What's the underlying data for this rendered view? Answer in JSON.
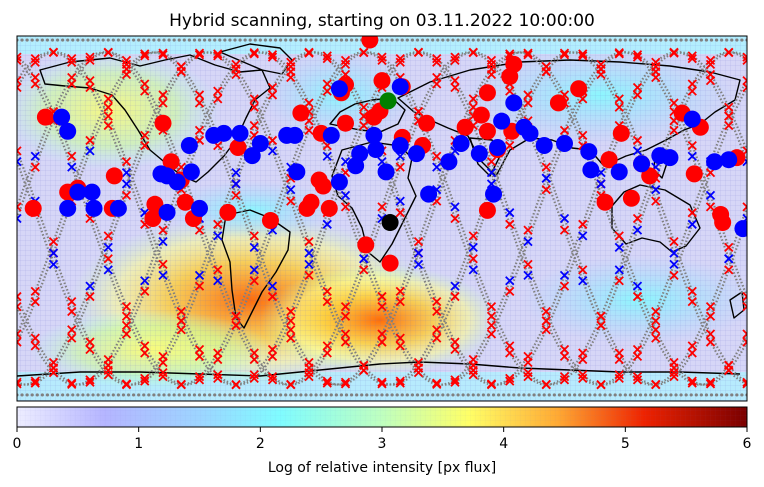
{
  "chart_data": {
    "type": "scatter",
    "title": "Hybrid scanning, starting on 03.11.2022 10:00:00",
    "background": "world map (equirectangular) shaded by log of relative intensity, with coastlines and a fine grid",
    "colorbar": {
      "label": "Log of relative intensity [px flux]",
      "ticks": [
        "0",
        "1",
        "2",
        "3",
        "4",
        "5",
        "6"
      ],
      "range": [
        0,
        6
      ],
      "colormap": "jet (light)"
    },
    "xlim": [
      -180,
      180
    ],
    "ylim": [
      -90,
      90
    ],
    "grid": true,
    "colors": {
      "track": "#808080",
      "red": "#ff0000",
      "blue": "#0000ff",
      "green": "#008000",
      "black": "#000000",
      "coastline": "#000000"
    },
    "markers": {
      "red_circles": [
        [
          -166,
          50
        ],
        [
          -172,
          5
        ],
        [
          -155,
          13
        ],
        [
          -150,
          15
        ],
        [
          -133,
          5
        ],
        [
          -132,
          21
        ],
        [
          -113,
          0
        ],
        [
          -112,
          7
        ],
        [
          -108,
          47
        ],
        [
          -104,
          28
        ],
        [
          -99,
          19
        ],
        [
          -97,
          8
        ],
        [
          -93,
          0
        ],
        [
          -76,
          3
        ],
        [
          -71,
          35
        ],
        [
          -55,
          -1
        ],
        [
          -31,
          19
        ],
        [
          -29,
          16
        ],
        [
          -35,
          8
        ],
        [
          -37,
          5
        ],
        [
          -26,
          5
        ],
        [
          -20,
          62
        ],
        [
          -18,
          47
        ],
        [
          -18,
          66
        ],
        [
          10,
          40
        ],
        [
          0,
          68
        ],
        [
          10,
          65
        ],
        [
          22,
          47
        ],
        [
          52,
          43
        ],
        [
          57,
          34
        ],
        [
          52,
          4
        ],
        [
          64,
          43
        ],
        [
          87,
          57
        ],
        [
          65,
          76
        ],
        [
          -6,
          88
        ],
        [
          -4,
          50
        ],
        [
          -40,
          52
        ],
        [
          110,
          8
        ],
        [
          112,
          29
        ],
        [
          128,
          27
        ],
        [
          154,
          22
        ],
        [
          167,
          2
        ],
        [
          157,
          45
        ],
        [
          148,
          52
        ],
        [
          175,
          30
        ],
        [
          168,
          -2
        ],
        [
          132,
          21
        ],
        [
          123,
          10
        ],
        [
          118,
          42
        ],
        [
          112,
          29
        ],
        [
          -8,
          -13
        ],
        [
          97,
          64
        ],
        [
          63,
          70
        ],
        [
          52,
          62
        ],
        [
          49,
          51
        ],
        [
          41,
          45
        ],
        [
          20,
          36
        ],
        [
          -1,
          53
        ],
        [
          4,
          -22
        ],
        [
          -30,
          42
        ]
      ],
      "blue_circles": [
        [
          -158,
          50
        ],
        [
          -155,
          43
        ],
        [
          -155,
          5
        ],
        [
          -150,
          13
        ],
        [
          -143,
          13
        ],
        [
          -142,
          5
        ],
        [
          -130,
          5
        ],
        [
          -109,
          22
        ],
        [
          -106,
          3
        ],
        [
          -106,
          21
        ],
        [
          -101,
          18
        ],
        [
          -95,
          36
        ],
        [
          -94,
          23
        ],
        [
          -90,
          5
        ],
        [
          -83,
          41
        ],
        [
          -78,
          42
        ],
        [
          -70,
          42
        ],
        [
          -64,
          31
        ],
        [
          -60,
          37
        ],
        [
          -47,
          41
        ],
        [
          -43,
          41
        ],
        [
          -42,
          23
        ],
        [
          -25,
          41
        ],
        [
          -21,
          18
        ],
        [
          -21,
          64
        ],
        [
          -13,
          26
        ],
        [
          -11,
          32
        ],
        [
          -4,
          41
        ],
        [
          -3,
          34
        ],
        [
          2,
          23
        ],
        [
          9,
          36
        ],
        [
          9,
          65
        ],
        [
          17,
          32
        ],
        [
          23,
          12
        ],
        [
          33,
          28
        ],
        [
          39,
          37
        ],
        [
          48,
          32
        ],
        [
          55,
          12
        ],
        [
          57,
          35
        ],
        [
          65,
          57
        ],
        [
          59,
          48
        ],
        [
          70,
          45
        ],
        [
          73,
          42
        ],
        [
          80,
          36
        ],
        [
          90,
          37
        ],
        [
          102,
          33
        ],
        [
          103,
          24
        ],
        [
          117,
          23
        ],
        [
          128,
          27
        ],
        [
          137,
          31
        ],
        [
          142,
          30
        ],
        [
          153,
          49
        ],
        [
          164,
          28
        ],
        [
          171,
          29
        ],
        [
          178,
          -5
        ]
      ],
      "green_circles": [
        [
          3,
          58
        ]
      ],
      "black_circles": [
        [
          4,
          -2
        ]
      ]
    }
  }
}
